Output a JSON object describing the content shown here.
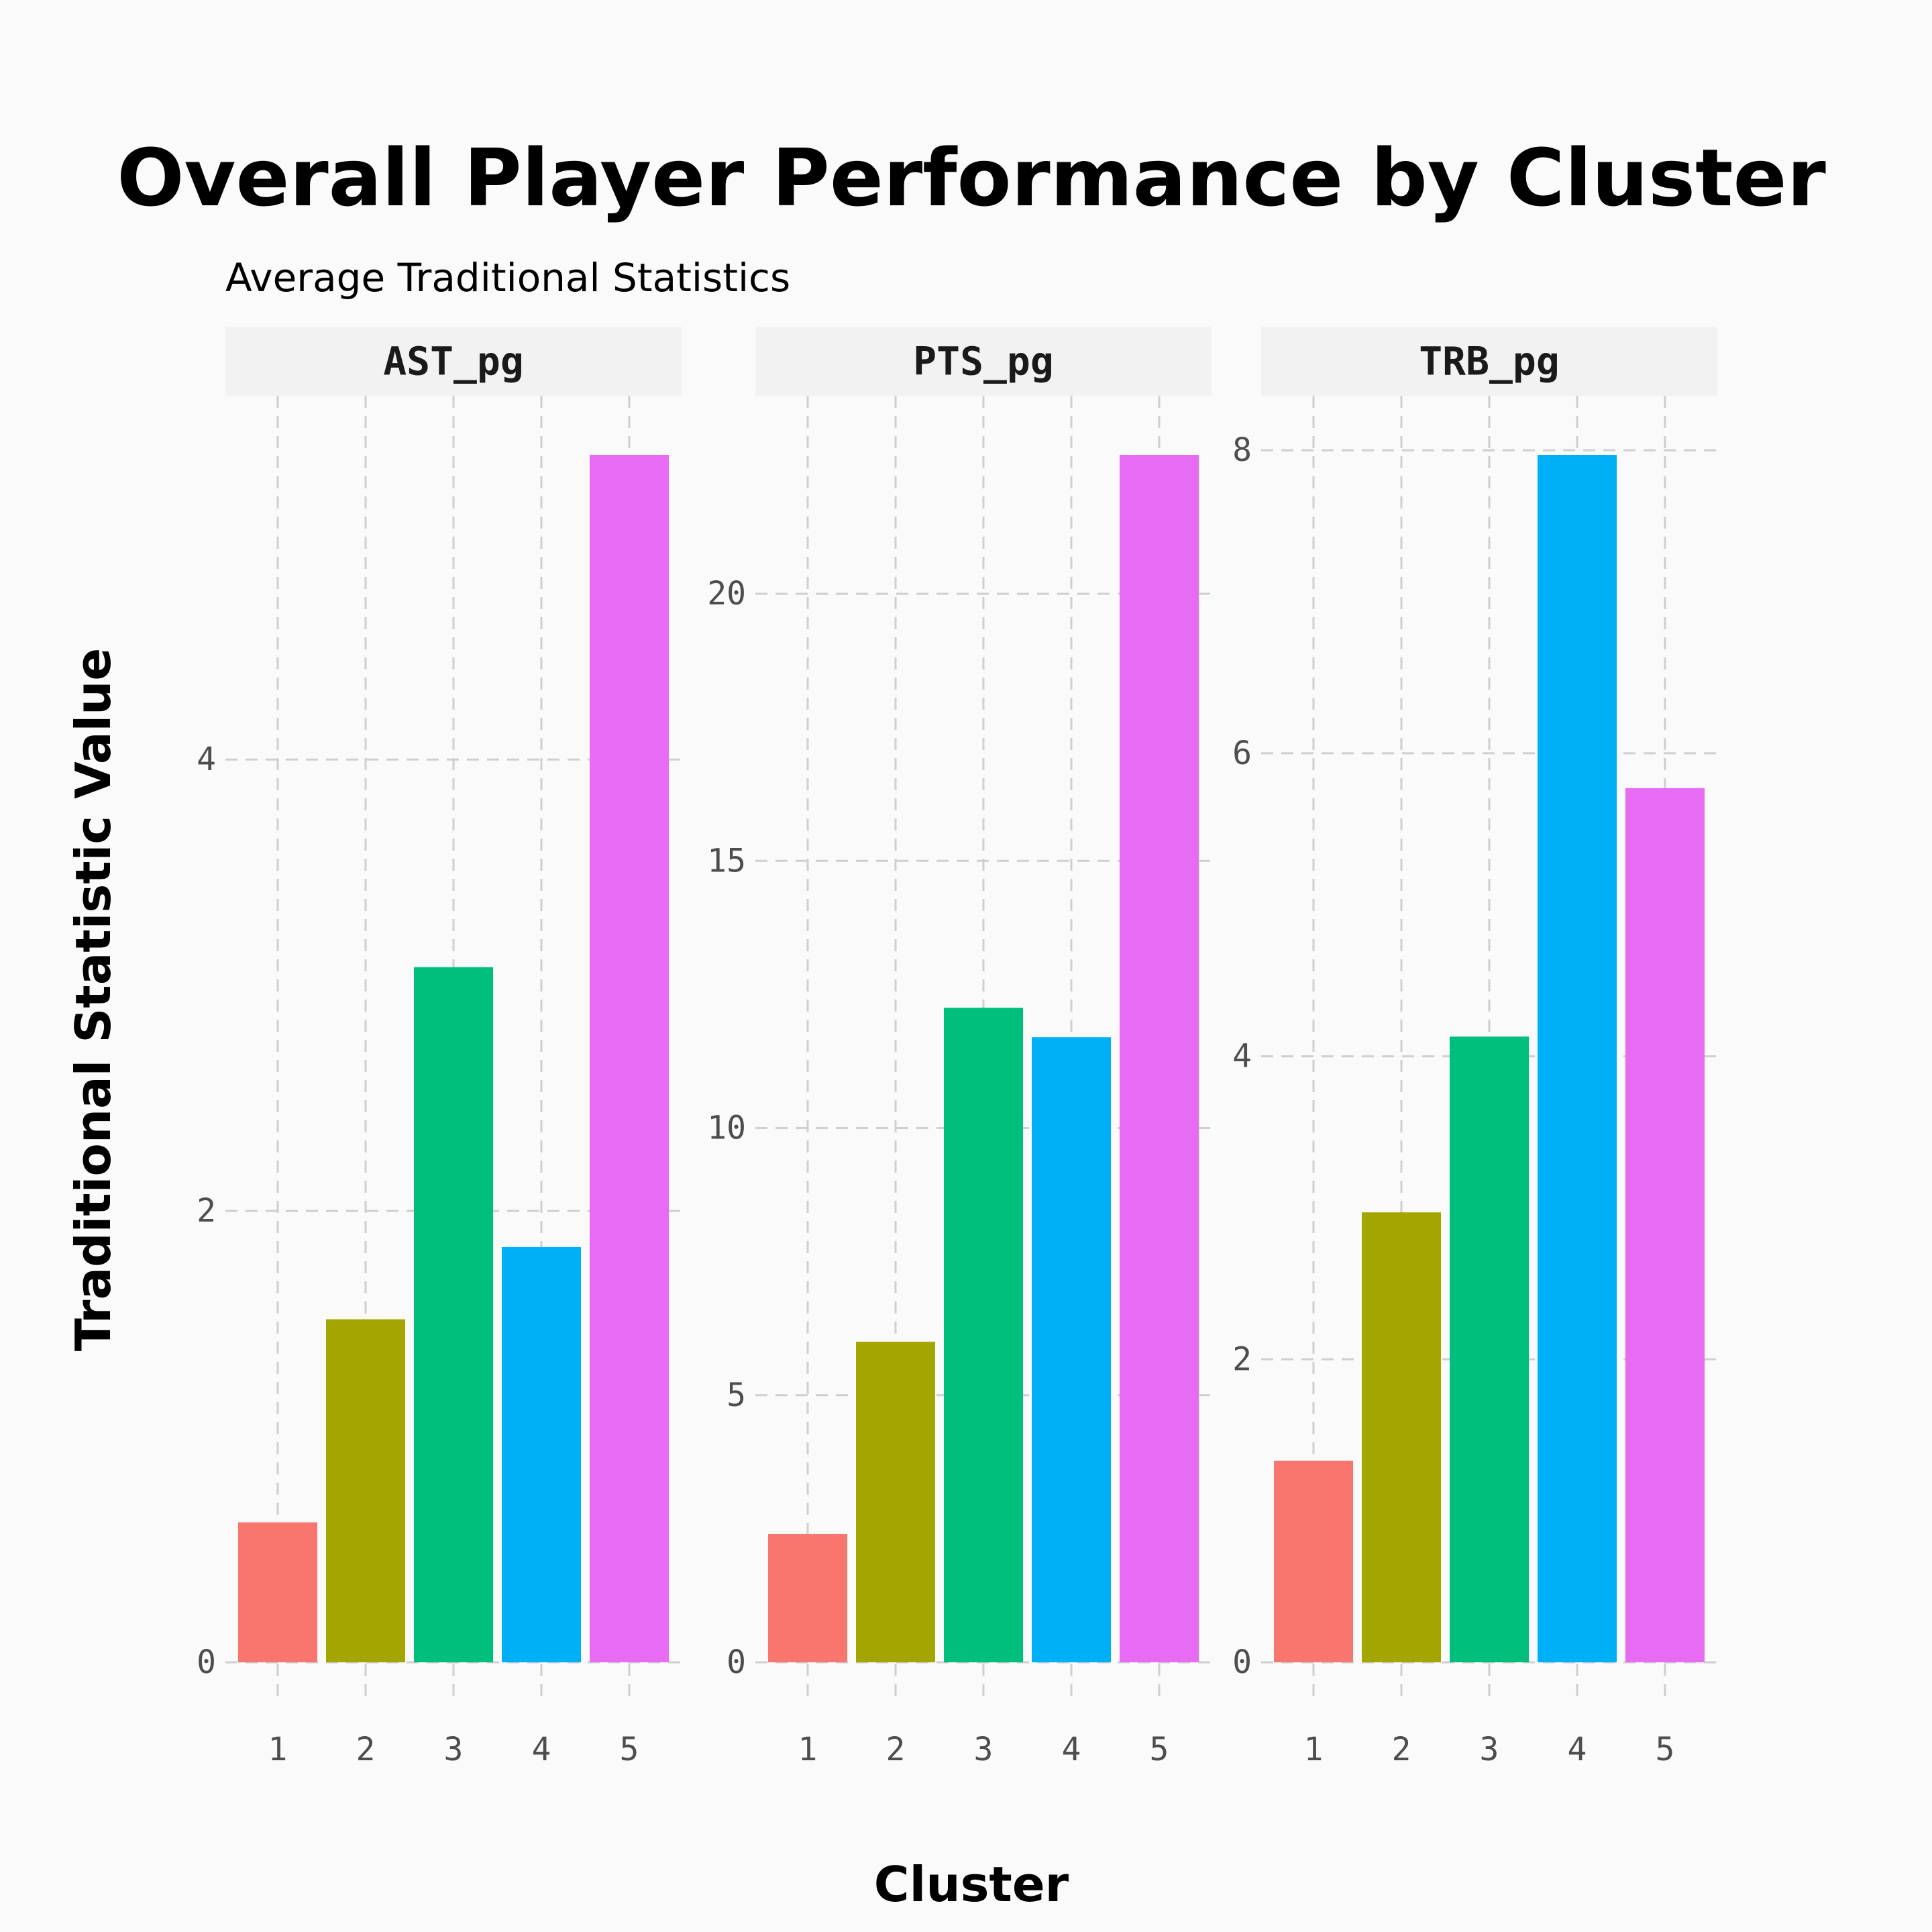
{
  "chart_data": {
    "type": "bar",
    "title": "Overall Player Performance by Cluster",
    "subtitle": "Average Traditional Statistics",
    "xlabel": "Cluster",
    "ylabel": "Traditional Statistic Value",
    "categories": [
      "1",
      "2",
      "3",
      "4",
      "5"
    ],
    "legend": "none",
    "grid": true,
    "colors": [
      "#F8766D",
      "#A3A500",
      "#00BF7D",
      "#00B0F6",
      "#E76BF3"
    ],
    "facets": [
      {
        "name": "AST_pg",
        "values": [
          0.62,
          1.52,
          3.08,
          1.84,
          5.35
        ],
        "ylim": [
          0,
          5.35
        ],
        "yticks": [
          0,
          2,
          4
        ],
        "ytick_labels": [
          "0",
          "2",
          "4"
        ]
      },
      {
        "name": "PTS_pg",
        "values": [
          2.4,
          6.0,
          12.25,
          11.7,
          22.6
        ],
        "ylim": [
          0,
          22.6
        ],
        "yticks": [
          0,
          5,
          10,
          15,
          20
        ],
        "ytick_labels": [
          "0",
          "5",
          "10",
          "15",
          "20"
        ]
      },
      {
        "name": "TRB_pg",
        "values": [
          1.33,
          2.97,
          4.13,
          7.97,
          5.77
        ],
        "ylim": [
          0,
          7.97
        ],
        "yticks": [
          0,
          2,
          4,
          6,
          8
        ],
        "ytick_labels": [
          "0",
          "2",
          "4",
          "6",
          "8"
        ]
      }
    ]
  }
}
